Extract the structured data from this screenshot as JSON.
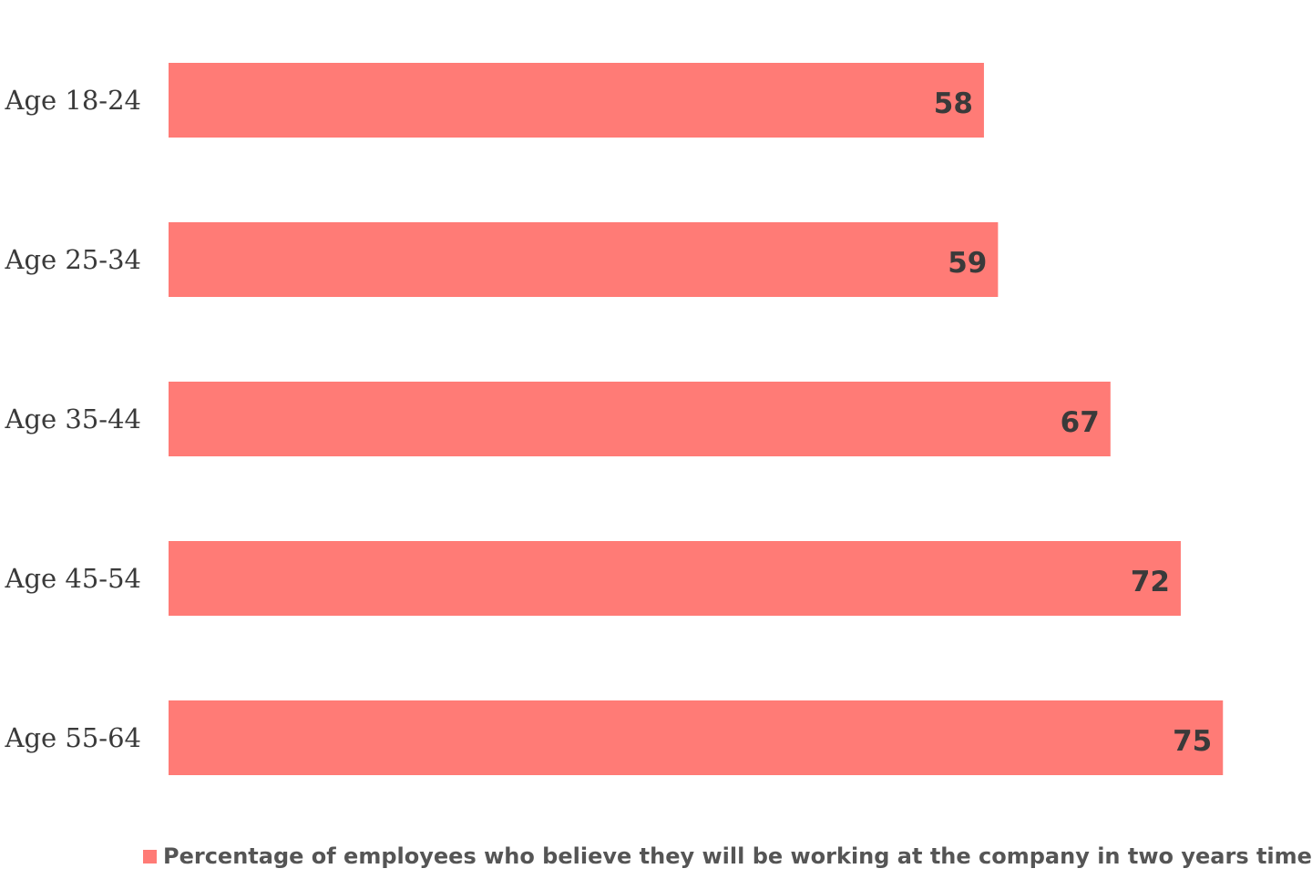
{
  "chart_data": {
    "type": "bar",
    "orientation": "horizontal",
    "categories": [
      "Age 18-24",
      "Age 25-34",
      "Age 35-44",
      "Age 45-54",
      "Age 55-64"
    ],
    "series": [
      {
        "name": "Percentage of employees who believe they will be working at the company in two years time",
        "values": [
          58,
          59,
          67,
          72,
          75
        ],
        "color": "#ff7b76"
      }
    ],
    "data_labels": [
      "58",
      "59",
      "67",
      "72",
      "75"
    ],
    "title": "",
    "xlabel": "",
    "ylabel": "",
    "xlim": [
      0,
      80
    ],
    "grid": false,
    "legend": "bottom",
    "label_color": "#3a3a3a",
    "legend_text_color": "#555555"
  }
}
